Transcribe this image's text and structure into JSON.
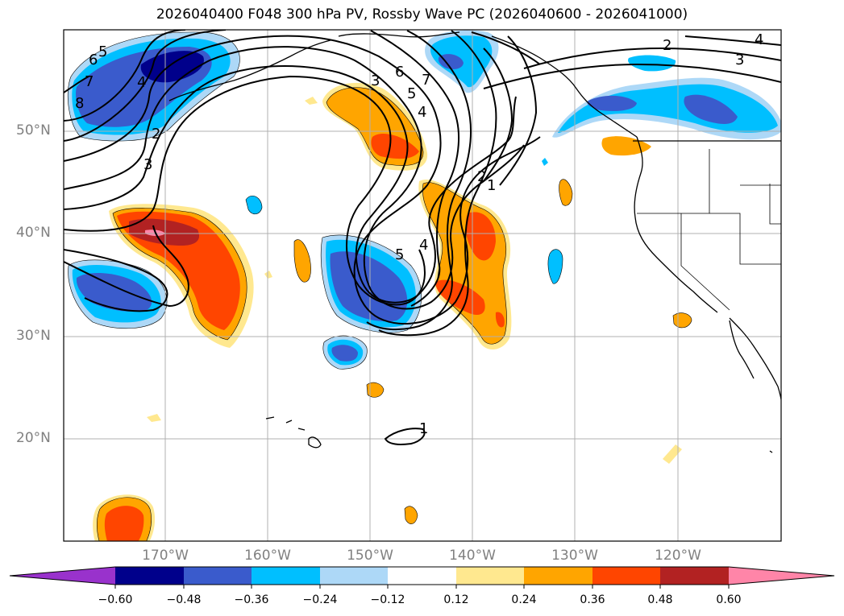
{
  "title": "2026040400 F048 300 hPa PV, Rossby Wave PC (2026040600 - 2026041000)",
  "latitude_labels": [
    "50°N",
    "40°N",
    "30°N",
    "20°N"
  ],
  "longitude_labels": [
    "170°W",
    "160°W",
    "150°W",
    "140°W",
    "130°W",
    "120°W"
  ],
  "colorbar": {
    "colors": [
      "#9932cc",
      "#00008b",
      "#3a5bcc",
      "#00bfff",
      "#add8f7",
      "#ffffff",
      "#ffe88f",
      "#ffa500",
      "#ff4500",
      "#b22222",
      "#ff85a8"
    ],
    "tick_labels": [
      "−0.60",
      "−0.48",
      "−0.36",
      "−0.24",
      "−0.12",
      "0.12",
      "0.24",
      "0.36",
      "0.48",
      "0.60"
    ]
  },
  "contour_labels": [
    "5",
    "6",
    "7",
    "8",
    "4",
    "2",
    "3",
    "6",
    "7",
    "5",
    "4",
    "3",
    "2",
    "1",
    "5",
    "4",
    "2",
    "3",
    "4",
    "1"
  ]
}
